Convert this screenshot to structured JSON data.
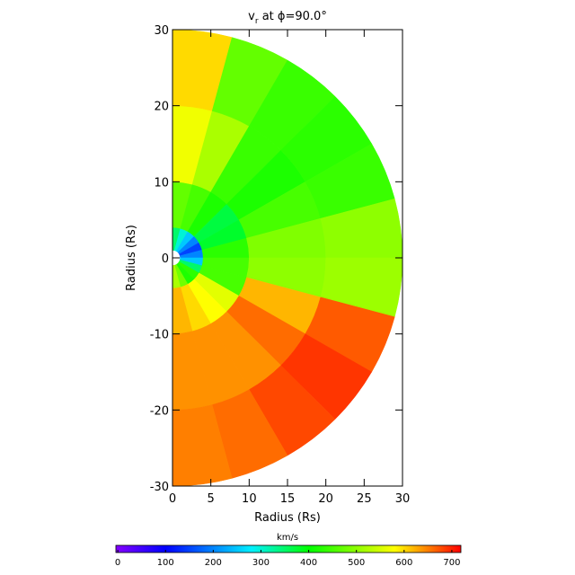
{
  "chart_data": {
    "type": "polar-heatmap",
    "title": {
      "main": "v",
      "sub": "r",
      "rest": " at ϕ=90.0°"
    },
    "x_label": "Radius (Rs)",
    "y_label": "Radius (Rs)",
    "xlim": [
      0,
      30
    ],
    "xticks": [
      0,
      5,
      10,
      15,
      20,
      25,
      30
    ],
    "ylim": [
      -30,
      30
    ],
    "yticks": [
      -30,
      -20,
      -10,
      0,
      10,
      20,
      30
    ],
    "theta_edges": [
      90,
      75,
      60,
      45,
      30,
      15,
      0,
      -15,
      -30,
      -45,
      -60,
      -75,
      -90
    ],
    "r_edges": [
      1,
      4,
      10,
      20,
      30
    ],
    "values": [
      [
        350,
        470,
        570,
        600
      ],
      [
        300,
        450,
        520,
        470
      ],
      [
        250,
        420,
        440,
        440
      ],
      [
        200,
        370,
        420,
        430
      ],
      [
        150,
        380,
        450,
        440
      ],
      [
        200,
        430,
        490,
        500
      ],
      [
        250,
        450,
        500,
        510
      ],
      [
        350,
        450,
        620,
        670
      ],
      [
        430,
        560,
        660,
        690
      ],
      [
        420,
        580,
        640,
        680
      ],
      [
        480,
        600,
        640,
        660
      ],
      [
        520,
        620,
        640,
        650
      ]
    ],
    "colorbar": {
      "label": "km/s",
      "lim": [
        -4,
        719
      ],
      "ticks": [
        0,
        100,
        200,
        300,
        400,
        500,
        600,
        700
      ],
      "colormap": [
        {
          "value": 0,
          "color": "#8000ff"
        },
        {
          "value": 100,
          "color": "#0000ff"
        },
        {
          "value": 280,
          "color": "#00f0ff"
        },
        {
          "value": 400,
          "color": "#00ff00"
        },
        {
          "value": 580,
          "color": "#ffff00"
        },
        {
          "value": 719,
          "color": "#ff0000"
        }
      ]
    }
  }
}
